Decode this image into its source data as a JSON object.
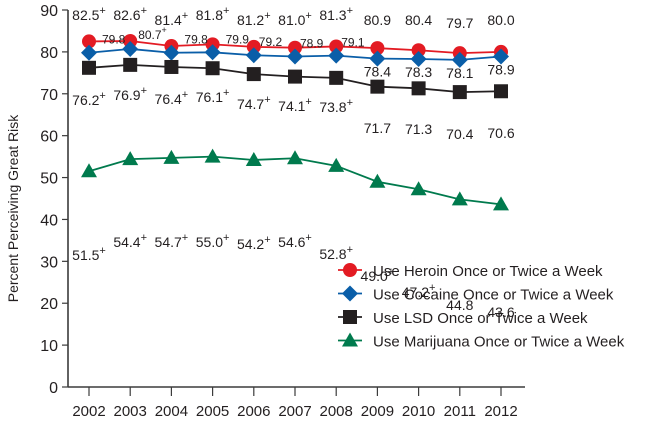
{
  "chart_data": {
    "type": "line",
    "title": "",
    "xlabel": "",
    "ylabel": "Percent Perceiving Great Risk",
    "ylim": [
      0,
      90
    ],
    "yticks": [
      0,
      10,
      20,
      30,
      40,
      50,
      60,
      70,
      80,
      90
    ],
    "grid": false,
    "legend_position": "lower right",
    "x": [
      "2002",
      "2003",
      "2004",
      "2005",
      "2006",
      "2007",
      "2008",
      "2009",
      "2010",
      "2011",
      "2012"
    ],
    "series": [
      {
        "name": "Use Heroin Once or Twice a Week",
        "color": "#e31b23",
        "marker": "circle",
        "values": [
          82.5,
          82.6,
          81.4,
          81.8,
          81.2,
          81.0,
          81.3,
          80.9,
          80.4,
          79.7,
          80.0
        ],
        "labels": [
          "82.5+",
          "82.6+",
          "81.4+",
          "81.8+",
          "81.2+",
          "81.0+",
          "81.3+",
          "80.9",
          "80.4",
          "79.7",
          "80.0"
        ]
      },
      {
        "name": "Use Cocaine Once or Twice a Week",
        "color": "#0a5ea8",
        "marker": "diamond",
        "values": [
          79.8,
          80.7,
          79.8,
          79.9,
          79.2,
          78.9,
          79.1,
          78.4,
          78.3,
          78.1,
          78.9
        ],
        "labels": [
          "79.8",
          "80.7+",
          "79.8",
          "79.9",
          "79.2",
          "78.9",
          "79.1",
          "78.4",
          "78.3",
          "78.1",
          "78.9"
        ]
      },
      {
        "name": "Use LSD Once or Twice a Week",
        "color": "#231f20",
        "marker": "square",
        "values": [
          76.2,
          76.9,
          76.4,
          76.1,
          74.7,
          74.1,
          73.8,
          71.7,
          71.3,
          70.4,
          70.6
        ],
        "labels": [
          "76.2+",
          "76.9+",
          "76.4+",
          "76.1+",
          "74.7+",
          "74.1+",
          "73.8+",
          "71.7",
          "71.3",
          "70.4",
          "70.6"
        ]
      },
      {
        "name": "Use Marijuana Once or Twice a Week",
        "color": "#007a4d",
        "marker": "triangle",
        "values": [
          51.5,
          54.4,
          54.7,
          55.0,
          54.2,
          54.6,
          52.8,
          49.0,
          47.2,
          44.8,
          43.6
        ],
        "labels": [
          "51.5+",
          "54.4+",
          "54.7+",
          "55.0+",
          "54.2+",
          "54.6+",
          "52.8+",
          "49.0+",
          "47.2+",
          "44.8",
          "43.6"
        ]
      }
    ]
  }
}
